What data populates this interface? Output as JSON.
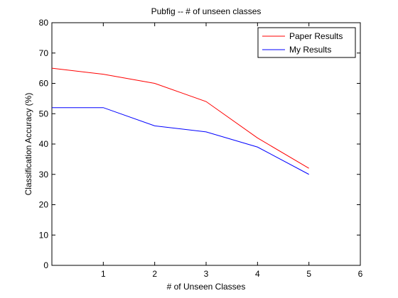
{
  "chart_data": {
    "type": "line",
    "title": "Pubfig -- # of unseen classes",
    "xlabel": "# of Unseen Classes",
    "ylabel": "Classification Accuracy (%)",
    "xlim": [
      0,
      6
    ],
    "ylim": [
      0,
      80
    ],
    "xticks": [
      1,
      2,
      3,
      4,
      5,
      6
    ],
    "yticks": [
      0,
      10,
      20,
      30,
      40,
      50,
      60,
      70,
      80
    ],
    "grid": false,
    "legend_position": "top-right",
    "x": [
      0,
      1,
      2,
      3,
      4,
      5
    ],
    "series": [
      {
        "name": "Paper Results",
        "color": "#ff0000",
        "values": [
          65,
          63,
          60,
          54,
          42,
          32
        ]
      },
      {
        "name": "My Results",
        "color": "#0000ff",
        "values": [
          52,
          52,
          46,
          44,
          39,
          30
        ]
      }
    ]
  }
}
